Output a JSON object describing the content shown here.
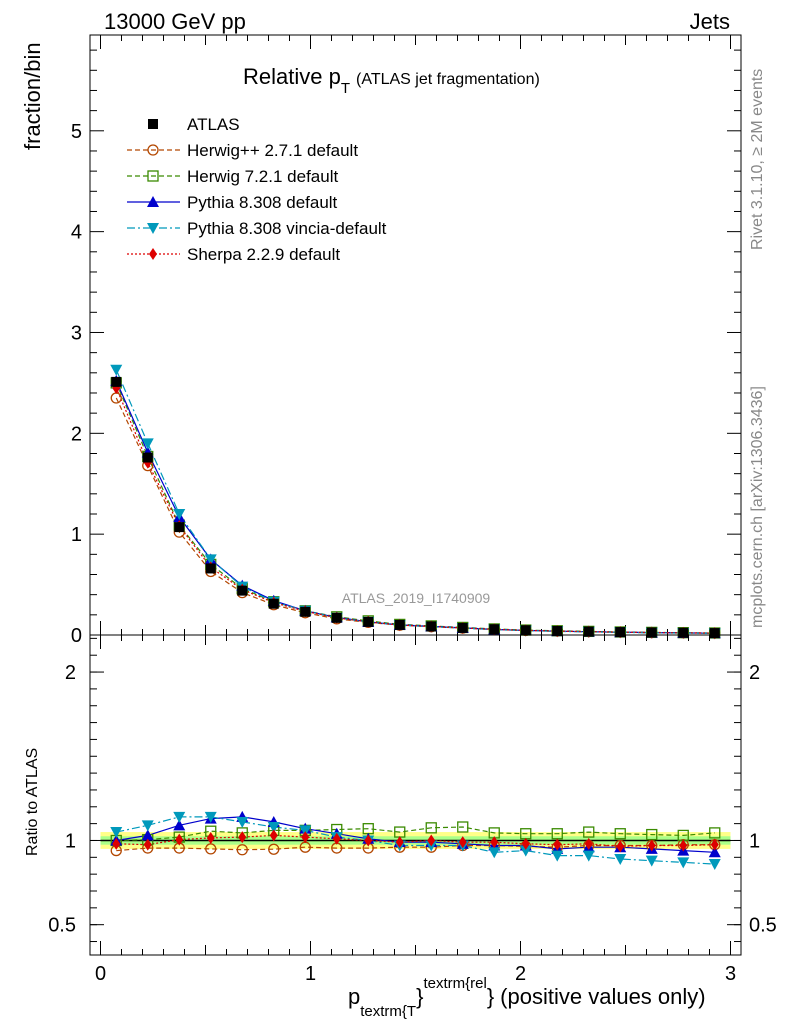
{
  "header": {
    "left": "13000 GeV pp",
    "right": "Jets"
  },
  "side_labels": {
    "rivet": "Rivet 3.1.10, ≥ 2M events",
    "mcplots": "mcplots.cern.ch [arXiv:1306.3436]"
  },
  "watermark": "ATLAS_2019_I1740909",
  "chart_data": [
    {
      "panel": "main",
      "type": "line",
      "title_main": "Relative p",
      "title_sub": "T",
      "title_rest": "(ATLAS jet fragmentation)",
      "ylabel": "fraction/bin",
      "xlim": [
        -0.05,
        3.05
      ],
      "ylim": [
        0,
        5.95
      ],
      "yticks": [
        0,
        1,
        2,
        3,
        4,
        5
      ],
      "ytick_labels": [
        "0",
        "1",
        "2",
        "3",
        "4",
        "5"
      ],
      "x": [
        0.075,
        0.225,
        0.375,
        0.525,
        0.675,
        0.825,
        0.975,
        1.125,
        1.275,
        1.425,
        1.575,
        1.725,
        1.875,
        2.025,
        2.175,
        2.325,
        2.475,
        2.625,
        2.775,
        2.925
      ],
      "series": [
        {
          "name": "ATLAS",
          "color": "#000000",
          "marker": "square",
          "dash": "none",
          "values": [
            2.51,
            1.76,
            1.07,
            0.66,
            0.44,
            0.31,
            0.23,
            0.17,
            0.13,
            0.1,
            0.085,
            0.07,
            0.057,
            0.047,
            0.04,
            0.034,
            0.029,
            0.025,
            0.022,
            0.019
          ]
        },
        {
          "name": "Herwig++ 2.7.1 default",
          "color": "#b34700",
          "marker": "circle-open",
          "dash": "5,3",
          "values": [
            2.35,
            1.68,
            1.02,
            0.63,
            0.42,
            0.3,
            0.22,
            0.16,
            0.125,
            0.097,
            0.082,
            0.068,
            0.055,
            0.045,
            0.038,
            0.033,
            0.028,
            0.024,
            0.021,
            0.018
          ]
        },
        {
          "name": "Herwig 7.2.1 default",
          "color": "#3a8a00",
          "marker": "square-open",
          "dash": "5,3",
          "values": [
            2.5,
            1.77,
            1.09,
            0.7,
            0.46,
            0.33,
            0.24,
            0.18,
            0.14,
            0.105,
            0.09,
            0.075,
            0.06,
            0.049,
            0.042,
            0.036,
            0.03,
            0.026,
            0.023,
            0.02
          ]
        },
        {
          "name": "Pythia 8.308 default",
          "color": "#0000cc",
          "marker": "triangle-up",
          "dash": "none",
          "values": [
            2.52,
            1.81,
            1.17,
            0.75,
            0.49,
            0.34,
            0.24,
            0.175,
            0.13,
            0.1,
            0.085,
            0.07,
            0.056,
            0.046,
            0.038,
            0.033,
            0.028,
            0.024,
            0.021,
            0.018
          ]
        },
        {
          "name": "Pythia 8.308 vincia-default",
          "color": "#0099bb",
          "marker": "triangle-down",
          "dash": "8,3,2,3",
          "values": [
            2.63,
            1.9,
            1.2,
            0.75,
            0.48,
            0.33,
            0.24,
            0.17,
            0.13,
            0.097,
            0.082,
            0.068,
            0.053,
            0.044,
            0.036,
            0.031,
            0.026,
            0.022,
            0.019,
            0.016
          ]
        },
        {
          "name": "Sherpa 2.2.9 default",
          "color": "#dd0000",
          "marker": "diamond",
          "dash": "2,2",
          "values": [
            2.45,
            1.71,
            1.08,
            0.67,
            0.45,
            0.32,
            0.235,
            0.17,
            0.13,
            0.098,
            0.084,
            0.069,
            0.056,
            0.046,
            0.039,
            0.033,
            0.028,
            0.024,
            0.021,
            0.019
          ]
        }
      ]
    },
    {
      "panel": "ratio",
      "type": "line",
      "ylabel": "Ratio to ATLAS",
      "xlabel_main": "p",
      "xlabel_sub": "textrm{T",
      "xlabel_sup": "textrm{rel",
      "xlabel_brace1": "}",
      "xlabel_brace2": "}",
      "xlabel_rest": "(positive values only)",
      "xlim": [
        -0.05,
        3.05
      ],
      "ylim": [
        0.32,
        2.22
      ],
      "yticks": [
        0.5,
        1,
        2
      ],
      "ytick_labels": [
        "0.5",
        "1",
        "2"
      ],
      "xticks": [
        0,
        1,
        2,
        3
      ],
      "xtick_labels": [
        "0",
        "1",
        "2",
        "3"
      ],
      "band_outer": 0.05,
      "band_inner": 0.025,
      "band_outer_color": "#ffff88",
      "band_inner_color": "#aaff88",
      "x": [
        0.075,
        0.225,
        0.375,
        0.525,
        0.675,
        0.825,
        0.975,
        1.125,
        1.275,
        1.425,
        1.575,
        1.725,
        1.875,
        2.025,
        2.175,
        2.325,
        2.475,
        2.625,
        2.775,
        2.925
      ],
      "series": [
        {
          "name": "ATLAS",
          "color": "#000000",
          "marker": "none",
          "dash": "none",
          "values": [
            1,
            1,
            1,
            1,
            1,
            1,
            1,
            1,
            1,
            1,
            1,
            1,
            1,
            1,
            1,
            1,
            1,
            1,
            1,
            1
          ]
        },
        {
          "name": "Herwig++ 2.7.1 default",
          "color": "#b34700",
          "marker": "circle-open",
          "dash": "5,3",
          "values": [
            0.94,
            0.955,
            0.955,
            0.95,
            0.945,
            0.948,
            0.96,
            0.955,
            0.955,
            0.96,
            0.96,
            0.97,
            0.97,
            0.965,
            0.96,
            0.97,
            0.97,
            0.97,
            0.975,
            0.975
          ]
        },
        {
          "name": "Herwig 7.2.1 default",
          "color": "#3a8a00",
          "marker": "square-open",
          "dash": "5,3",
          "values": [
            1.0,
            1.005,
            1.02,
            1.055,
            1.045,
            1.06,
            1.06,
            1.065,
            1.07,
            1.05,
            1.075,
            1.08,
            1.045,
            1.04,
            1.04,
            1.05,
            1.04,
            1.035,
            1.03,
            1.045
          ]
        },
        {
          "name": "Pythia 8.308 default",
          "color": "#0000cc",
          "marker": "triangle-up",
          "dash": "none",
          "values": [
            1.0,
            1.03,
            1.09,
            1.13,
            1.14,
            1.11,
            1.07,
            1.04,
            1.01,
            0.99,
            0.99,
            0.98,
            0.97,
            0.97,
            0.95,
            0.96,
            0.96,
            0.95,
            0.94,
            0.93
          ]
        },
        {
          "name": "Pythia 8.308 vincia-default",
          "color": "#0099bb",
          "marker": "triangle-down",
          "dash": "8,3,2,3",
          "values": [
            1.05,
            1.09,
            1.14,
            1.14,
            1.11,
            1.08,
            1.06,
            1.02,
            1.0,
            0.97,
            0.97,
            0.97,
            0.93,
            0.94,
            0.91,
            0.91,
            0.89,
            0.88,
            0.87,
            0.86
          ]
        },
        {
          "name": "Sherpa 2.2.9 default",
          "color": "#dd0000",
          "marker": "diamond",
          "dash": "2,2",
          "values": [
            0.98,
            0.975,
            1.005,
            1.015,
            1.02,
            1.03,
            1.02,
            1.01,
            1.0,
            0.99,
            1.0,
            0.99,
            0.99,
            0.98,
            0.975,
            0.98,
            0.965,
            0.97,
            0.97,
            0.975
          ]
        }
      ]
    }
  ]
}
